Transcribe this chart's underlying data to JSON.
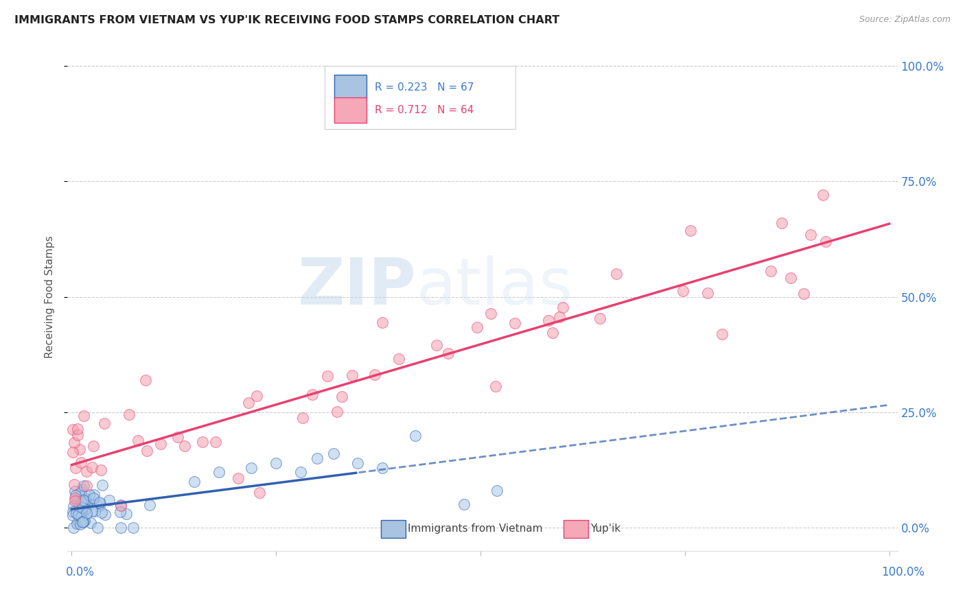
{
  "title": "IMMIGRANTS FROM VIETNAM VS YUP'IK RECEIVING FOOD STAMPS CORRELATION CHART",
  "source": "Source: ZipAtlas.com",
  "ylabel": "Receiving Food Stamps",
  "ytick_labels": [
    "0.0%",
    "25.0%",
    "50.0%",
    "75.0%",
    "100.0%"
  ],
  "ytick_values": [
    0.0,
    0.25,
    0.5,
    0.75,
    1.0
  ],
  "legend_color1": "#a8c4e0",
  "legend_color2": "#f4a8b8",
  "scatter_color1": "#a8c8e8",
  "scatter_color2": "#f4a0b0",
  "line_color1": "#3060b0",
  "line_color2": "#e84070",
  "background_color": "#ffffff",
  "watermark_zip": "ZIP",
  "watermark_atlas": "atlas",
  "legend_R1": "0.223",
  "legend_N1": "67",
  "legend_R2": "0.712",
  "legend_N2": "64"
}
